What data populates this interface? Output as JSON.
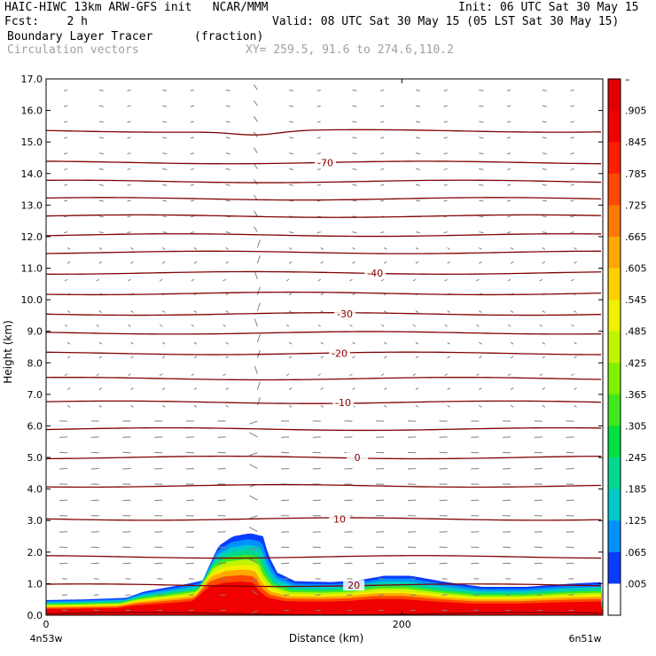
{
  "header": {
    "title_left": "HAIC-HIWC 13km ARW-GFS init   NCAR/MMM",
    "init": "Init: 06 UTC Sat 30 May 15",
    "fcst": "Fcst:    2 h",
    "valid": "Valid: 08 UTC Sat 30 May 15 (05 LST Sat 30 May 15)",
    "field_name": "Boundary Layer Tracer",
    "field_units": "(fraction)",
    "vectors_label": "Circulation vectors",
    "xy_label": "XY= 259.5, 91.6 to 274.6,110.2"
  },
  "chart_data": {
    "type": "heatmap",
    "title": "Boundary Layer Tracer",
    "units": "(fraction)",
    "xlabel": "Distance (km)",
    "ylabel": "Height (km)",
    "xlim": [
      0,
      313
    ],
    "ylim": [
      0,
      17
    ],
    "x_ticks": [
      0,
      200
    ],
    "y_ticks": [
      "0.0",
      "1.0",
      "2.0",
      "3.0",
      "4.0",
      "5.0",
      "6.0",
      "7.0",
      "8.0",
      "9.0",
      "10.0",
      "11.0",
      "12.0",
      "13.0",
      "14.0",
      "15.0",
      "16.0",
      "17.0"
    ],
    "x_endpoint_labels": {
      "left": "4n53w",
      "right": "6n51w"
    },
    "colorbar_labels": [
      ".005",
      ".065",
      ".125",
      ".185",
      ".245",
      ".305",
      ".365",
      ".425",
      ".485",
      ".545",
      ".605",
      ".665",
      ".725",
      ".785",
      ".845",
      ".905",
      "–"
    ],
    "colorbar_colors": [
      "#ffffff",
      "#0a3cff",
      "#0090ff",
      "#00c8c8",
      "#00d890",
      "#00e040",
      "#40e820",
      "#80f000",
      "#c0f400",
      "#f0f000",
      "#ffd000",
      "#ffa800",
      "#ff7800",
      "#ff4800",
      "#ff1e00",
      "#f00000",
      "#e00000"
    ],
    "tracer_top_km": [
      {
        "x": 0,
        "y": 0.48
      },
      {
        "x": 20,
        "y": 0.5
      },
      {
        "x": 45,
        "y": 0.55
      },
      {
        "x": 55,
        "y": 0.75
      },
      {
        "x": 68,
        "y": 0.88
      },
      {
        "x": 80,
        "y": 1.0
      },
      {
        "x": 88,
        "y": 1.1
      },
      {
        "x": 92,
        "y": 1.6
      },
      {
        "x": 97,
        "y": 2.2
      },
      {
        "x": 105,
        "y": 2.5
      },
      {
        "x": 115,
        "y": 2.6
      },
      {
        "x": 122,
        "y": 2.5
      },
      {
        "x": 125,
        "y": 1.9
      },
      {
        "x": 130,
        "y": 1.35
      },
      {
        "x": 140,
        "y": 1.08
      },
      {
        "x": 160,
        "y": 1.05
      },
      {
        "x": 175,
        "y": 1.1
      },
      {
        "x": 190,
        "y": 1.25
      },
      {
        "x": 205,
        "y": 1.25
      },
      {
        "x": 225,
        "y": 1.05
      },
      {
        "x": 245,
        "y": 0.9
      },
      {
        "x": 270,
        "y": 0.9
      },
      {
        "x": 295,
        "y": 1.0
      },
      {
        "x": 313,
        "y": 1.05
      }
    ],
    "temperature_contours": [
      {
        "label": "-70",
        "y": 14.35,
        "label_x": 157
      },
      {
        "label": "-40",
        "y": 10.85,
        "label_x": 185
      },
      {
        "label": "-30",
        "y": 9.55,
        "label_x": 168
      },
      {
        "label": "-20",
        "y": 8.3,
        "label_x": 165
      },
      {
        "label": "-10",
        "y": 6.75,
        "label_x": 167
      },
      {
        "label": "0",
        "y": 5.0,
        "label_x": 175
      },
      {
        "label": "10",
        "y": 3.05,
        "label_x": 165
      },
      {
        "label": "20",
        "y": 0.95,
        "label_x": 173
      }
    ],
    "unlabeled_contour_heights_km": [
      0.05,
      1.85,
      4.1,
      5.9,
      7.5,
      8.95,
      10.2,
      11.5,
      12.05,
      12.65,
      13.2,
      13.75,
      15.35
    ]
  }
}
